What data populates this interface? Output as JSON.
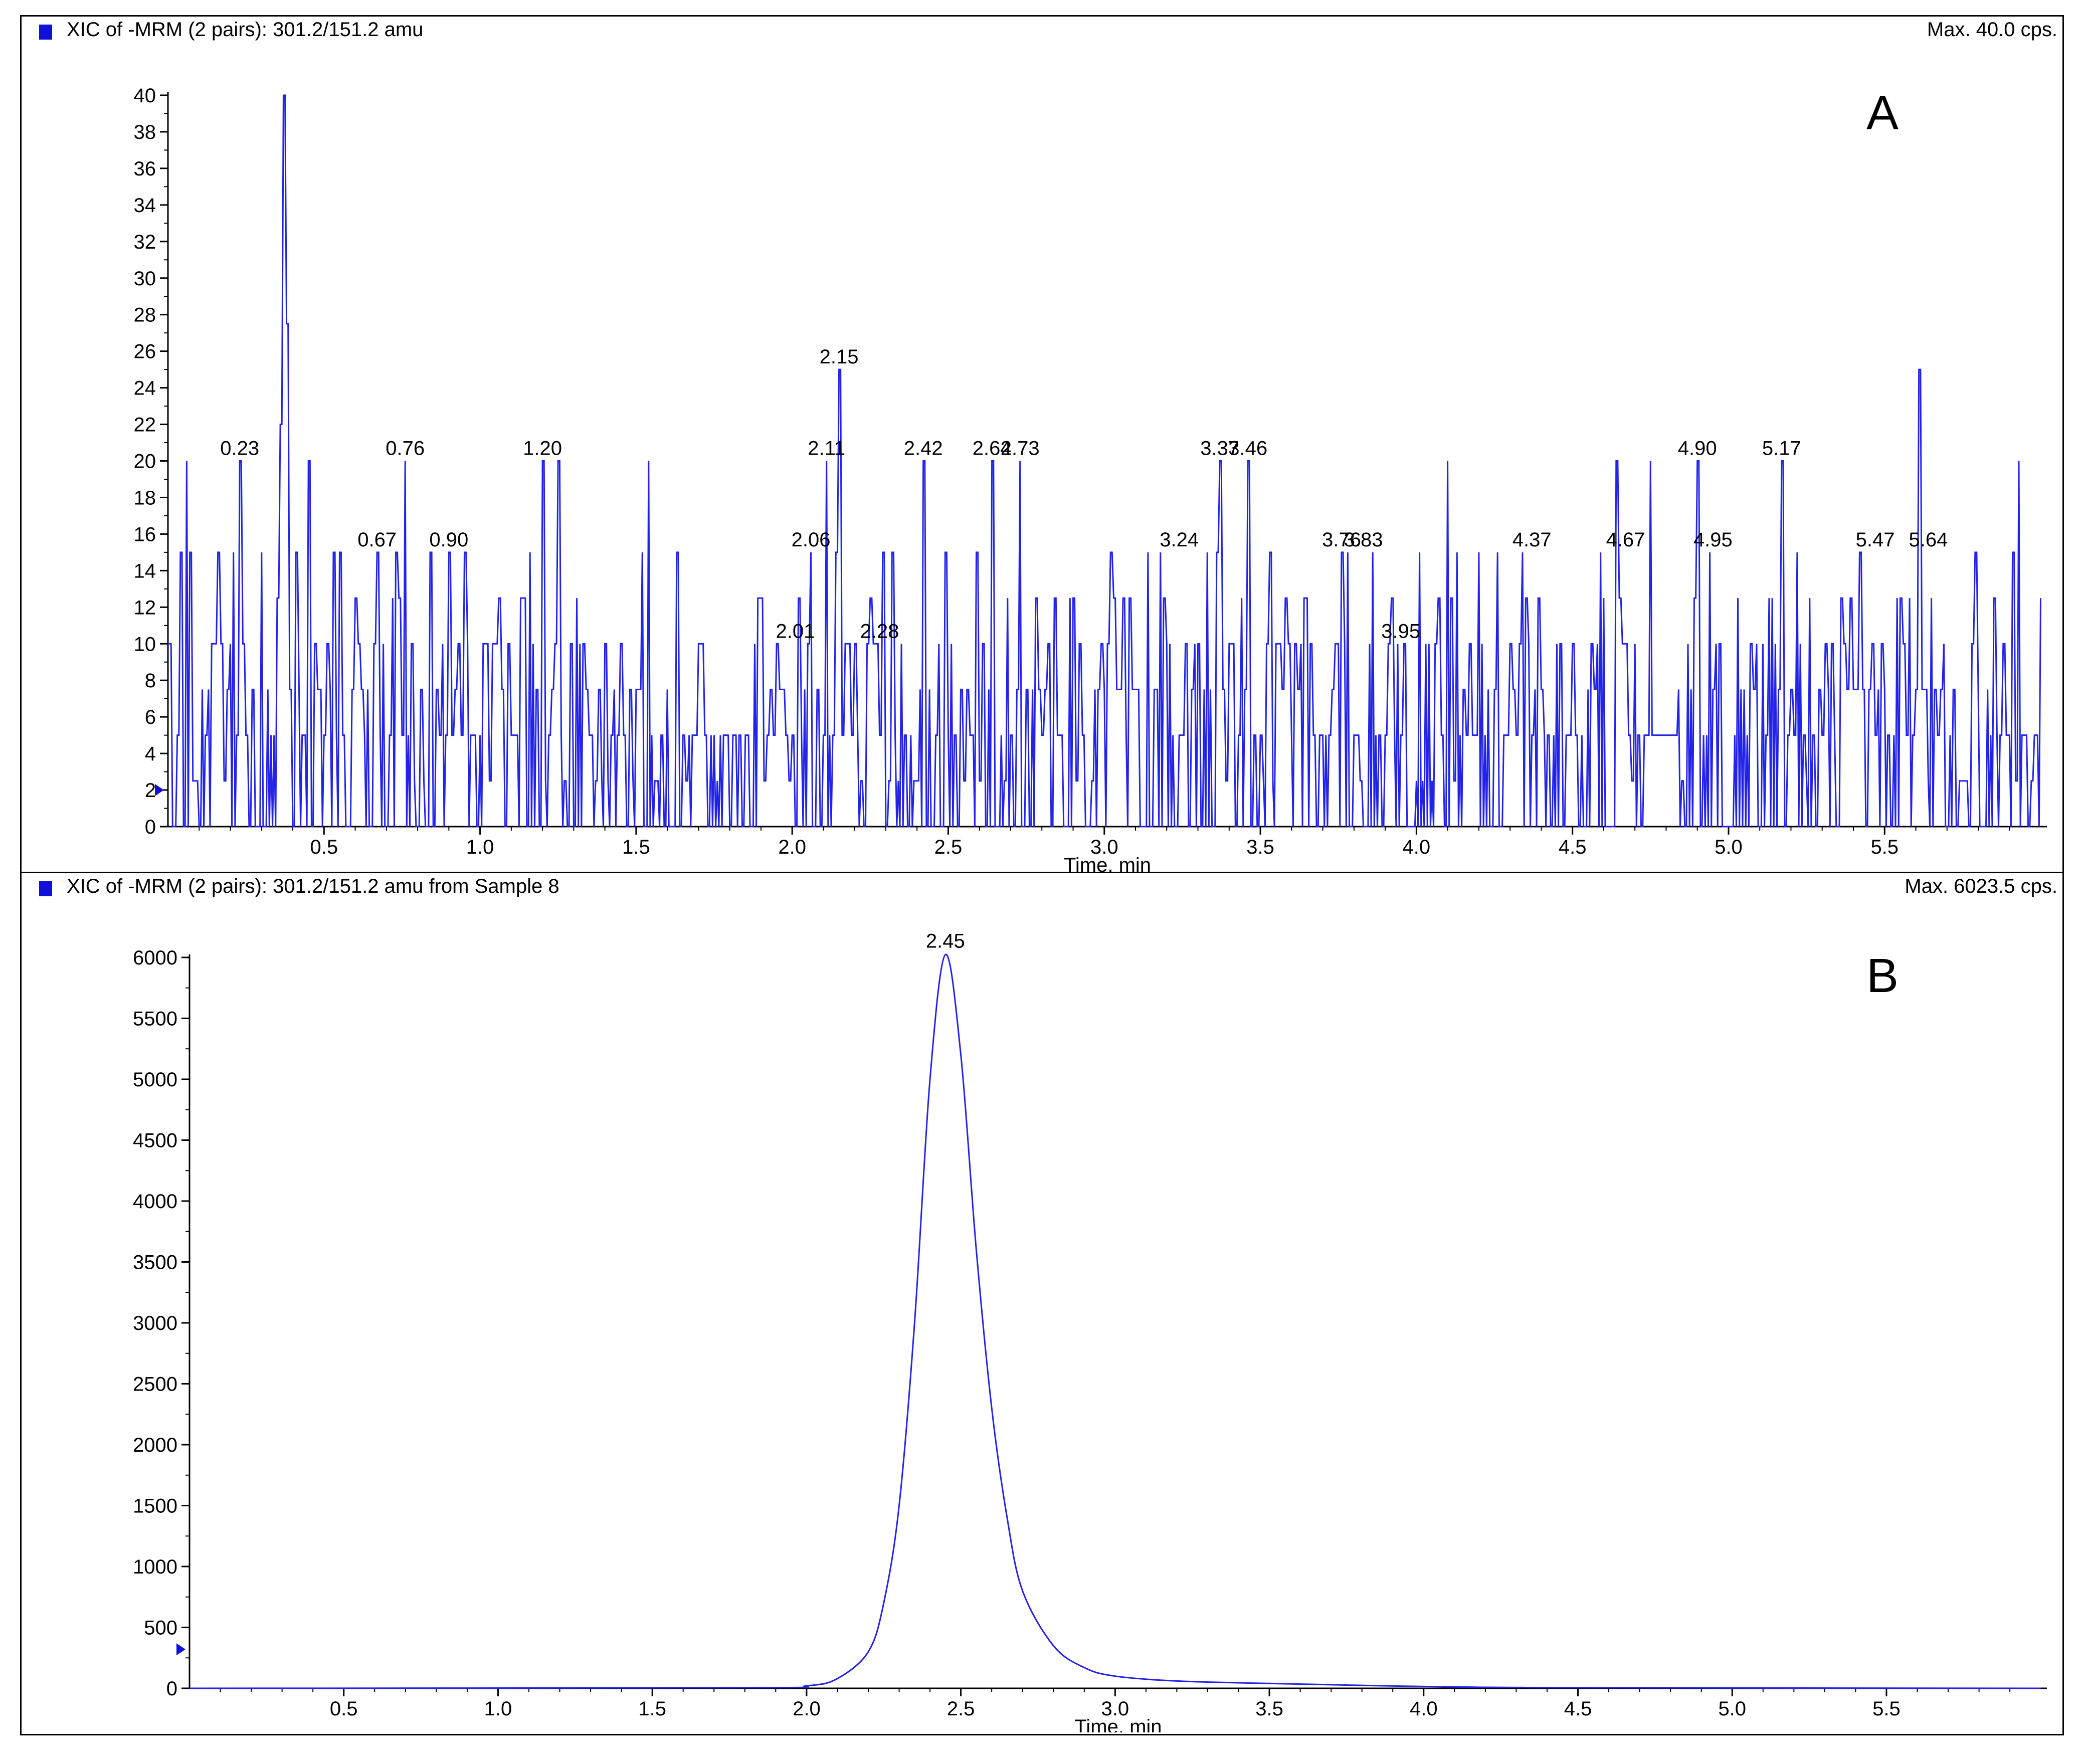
{
  "chart_data": [
    {
      "type": "line",
      "panel_label": "A",
      "title": "XIC of -MRM (2 pairs): 301.2/151.2 amu",
      "max_label": "Max. 40.0 cps.",
      "xlabel": "Time, min",
      "ylabel": "",
      "xlim": [
        0.0,
        6.02
      ],
      "ylim": [
        0,
        40
      ],
      "x_ticks": [
        "0.5",
        "1.0",
        "1.5",
        "2.0",
        "2.5",
        "3.0",
        "3.5",
        "4.0",
        "4.5",
        "5.0",
        "5.5"
      ],
      "y_ticks": [
        "0",
        "2",
        "4",
        "6",
        "8",
        "10",
        "12",
        "14",
        "16",
        "18",
        "20",
        "22",
        "24",
        "26",
        "28",
        "30",
        "32",
        "34",
        "36",
        "38",
        "40"
      ],
      "grid": false,
      "line_color": "#2222e8",
      "note": "noise baseline trace, intensities 0-40 cps",
      "spikes": [
        {
          "x": 0.01,
          "y": 10
        },
        {
          "x": 0.04,
          "y": 15
        },
        {
          "x": 0.06,
          "y": 20
        },
        {
          "x": 0.23,
          "y": 20
        },
        {
          "x": 0.36,
          "y": 22
        },
        {
          "x": 0.37,
          "y": 40
        },
        {
          "x": 0.38,
          "y": 27.5
        },
        {
          "x": 0.41,
          "y": 15
        },
        {
          "x": 0.45,
          "y": 20
        },
        {
          "x": 0.67,
          "y": 15
        },
        {
          "x": 0.76,
          "y": 20
        },
        {
          "x": 0.9,
          "y": 15
        },
        {
          "x": 1.2,
          "y": 20
        },
        {
          "x": 1.25,
          "y": 20
        },
        {
          "x": 1.54,
          "y": 20
        },
        {
          "x": 2.06,
          "y": 15
        },
        {
          "x": 2.11,
          "y": 20
        },
        {
          "x": 2.15,
          "y": 25
        },
        {
          "x": 2.42,
          "y": 20
        },
        {
          "x": 2.64,
          "y": 20
        },
        {
          "x": 2.73,
          "y": 20
        },
        {
          "x": 3.37,
          "y": 20
        },
        {
          "x": 3.46,
          "y": 20
        },
        {
          "x": 4.1,
          "y": 20
        },
        {
          "x": 4.64,
          "y": 20
        },
        {
          "x": 4.75,
          "y": 20
        },
        {
          "x": 4.9,
          "y": 20
        },
        {
          "x": 5.17,
          "y": 20
        },
        {
          "x": 5.61,
          "y": 25
        },
        {
          "x": 5.93,
          "y": 20
        }
      ],
      "annotations": [
        {
          "text": "0.23",
          "x": 0.23,
          "y": 20
        },
        {
          "text": "0.67",
          "x": 0.67,
          "y": 15
        },
        {
          "text": "0.76",
          "x": 0.76,
          "y": 20
        },
        {
          "text": "0.90",
          "x": 0.9,
          "y": 15
        },
        {
          "text": "1.20",
          "x": 1.2,
          "y": 20
        },
        {
          "text": "2.01",
          "x": 2.01,
          "y": 10
        },
        {
          "text": "2.06",
          "x": 2.06,
          "y": 15
        },
        {
          "text": "2.11",
          "x": 2.11,
          "y": 20
        },
        {
          "text": "2.15",
          "x": 2.15,
          "y": 25
        },
        {
          "text": "2.28",
          "x": 2.28,
          "y": 10
        },
        {
          "text": "2.42",
          "x": 2.42,
          "y": 20
        },
        {
          "text": "2.64",
          "x": 2.64,
          "y": 20
        },
        {
          "text": "2.73",
          "x": 2.73,
          "y": 20
        },
        {
          "text": "3.24",
          "x": 3.24,
          "y": 15
        },
        {
          "text": "3.37",
          "x": 3.37,
          "y": 20
        },
        {
          "text": "3.46",
          "x": 3.46,
          "y": 20
        },
        {
          "text": "3.76",
          "x": 3.76,
          "y": 15
        },
        {
          "text": "3.83",
          "x": 3.83,
          "y": 15
        },
        {
          "text": "3.95",
          "x": 3.95,
          "y": 10
        },
        {
          "text": "4.37",
          "x": 4.37,
          "y": 15
        },
        {
          "text": "4.67",
          "x": 4.67,
          "y": 15
        },
        {
          "text": "4.90",
          "x": 4.9,
          "y": 20
        },
        {
          "text": "4.95",
          "x": 4.95,
          "y": 15
        },
        {
          "text": "5.17",
          "x": 5.17,
          "y": 20
        },
        {
          "text": "5.47",
          "x": 5.47,
          "y": 15
        },
        {
          "text": "5.64",
          "x": 5.64,
          "y": 15
        }
      ]
    },
    {
      "type": "line",
      "panel_label": "B",
      "title": "XIC of -MRM (2 pairs): 301.2/151.2 amu from Sample 8",
      "max_label": "Max. 6023.5 cps.",
      "xlabel": "Time, min",
      "ylabel": "",
      "xlim": [
        0.0,
        6.02
      ],
      "ylim": [
        0,
        6000
      ],
      "x_ticks": [
        "0.5",
        "1.0",
        "1.5",
        "2.0",
        "2.5",
        "3.0",
        "3.5",
        "4.0",
        "4.5",
        "5.0",
        "5.5"
      ],
      "y_ticks": [
        "0",
        "500",
        "1000",
        "1500",
        "2000",
        "2500",
        "3000",
        "3500",
        "4000",
        "4500",
        "5000",
        "5500",
        "6000"
      ],
      "grid": false,
      "line_color": "#2222e8",
      "points": [
        {
          "x": 0.0,
          "y": 0
        },
        {
          "x": 1.8,
          "y": 5
        },
        {
          "x": 2.0,
          "y": 20
        },
        {
          "x": 2.1,
          "y": 80
        },
        {
          "x": 2.2,
          "y": 300
        },
        {
          "x": 2.25,
          "y": 700
        },
        {
          "x": 2.3,
          "y": 1500
        },
        {
          "x": 2.35,
          "y": 3000
        },
        {
          "x": 2.4,
          "y": 5000
        },
        {
          "x": 2.45,
          "y": 6023.5
        },
        {
          "x": 2.5,
          "y": 5200
        },
        {
          "x": 2.55,
          "y": 3600
        },
        {
          "x": 2.6,
          "y": 2300
        },
        {
          "x": 2.65,
          "y": 1400
        },
        {
          "x": 2.7,
          "y": 800
        },
        {
          "x": 2.8,
          "y": 350
        },
        {
          "x": 2.9,
          "y": 170
        },
        {
          "x": 3.0,
          "y": 100
        },
        {
          "x": 3.2,
          "y": 60
        },
        {
          "x": 3.5,
          "y": 40
        },
        {
          "x": 4.0,
          "y": 15
        },
        {
          "x": 4.5,
          "y": 5
        },
        {
          "x": 6.0,
          "y": 0
        }
      ],
      "annotations": [
        {
          "text": "2.45",
          "x": 2.45,
          "y": 6023.5
        }
      ]
    }
  ]
}
